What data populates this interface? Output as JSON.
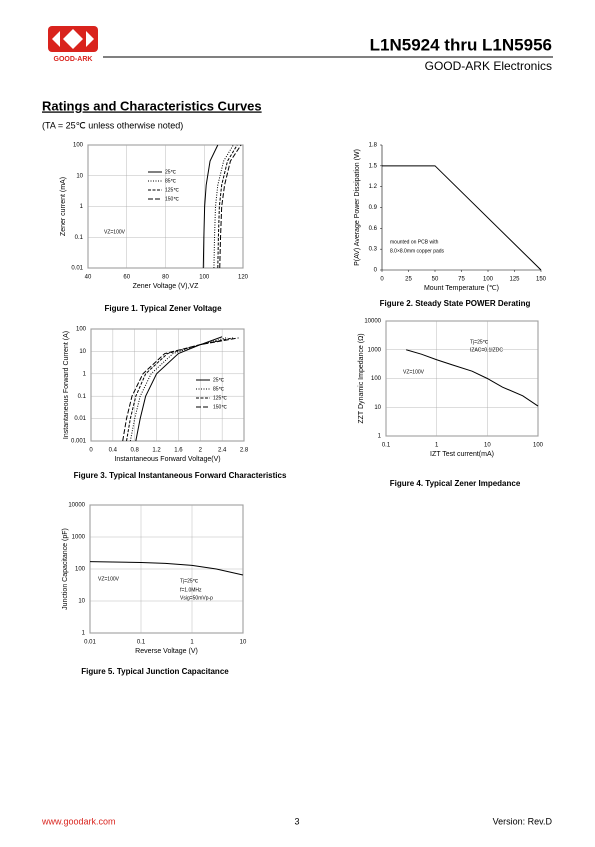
{
  "header": {
    "logo_text": "GOOD-ARK",
    "title": "L1N5924 thru L1N5956",
    "company": "GOOD-ARK Electronics"
  },
  "section": {
    "title": "Ratings and Characteristics Curves",
    "note": "(TA = 25℃ unless otherwise noted)"
  },
  "chart_data": [
    {
      "type": "line",
      "title": "Figure 1. Typical Zener Voltage",
      "x_label": "Zener Voltage (V),VZ",
      "y_label": "Zener current (mA)",
      "xlim": [
        40,
        120
      ],
      "xticks": [
        40,
        60,
        80,
        100,
        120
      ],
      "ylim": [
        0.01,
        100
      ],
      "yticks": [
        0.01,
        0.1,
        1,
        10,
        100
      ],
      "ylog": true,
      "grid": true,
      "annotations": [
        "VZ=100V"
      ],
      "series": [
        {
          "name": "25℃",
          "color": "#000000",
          "dash": "none",
          "x": [
            99.5,
            99.8,
            100.2,
            101,
            103,
            107
          ],
          "values": [
            0.01,
            0.1,
            1,
            5,
            30,
            100
          ]
        },
        {
          "name": "85℃",
          "color": "#000000",
          "dash": "1,1.5",
          "x": [
            105,
            105.3,
            105.8,
            107,
            110,
            115
          ],
          "values": [
            0.01,
            0.1,
            1,
            5,
            30,
            100
          ]
        },
        {
          "name": "125℃",
          "color": "#000000",
          "dash": "3,1.5",
          "x": [
            107,
            107.3,
            107.8,
            109,
            112,
            117
          ],
          "values": [
            0.01,
            0.1,
            1,
            5,
            30,
            100
          ]
        },
        {
          "name": "150℃",
          "color": "#000000",
          "dash": "5,2",
          "x": [
            108,
            108.4,
            109,
            110.5,
            113.5,
            119
          ],
          "values": [
            0.01,
            0.1,
            1,
            5,
            30,
            100
          ]
        }
      ]
    },
    {
      "type": "line",
      "title": "Figure 2. Steady State POWER Derating",
      "x_label": "Mount Temperature (℃)",
      "y_label": "P(AV) Average Power Dissipation (W)",
      "xlim": [
        0,
        150
      ],
      "xticks": [
        0,
        25,
        50,
        75,
        100,
        125,
        150
      ],
      "ylim": [
        0,
        1.8
      ],
      "yticks": [
        0,
        0.3,
        0.6,
        0.9,
        1.2,
        1.5,
        1.8
      ],
      "grid": false,
      "annotations": [
        "mounted on PCB with",
        "8.0×8.0mm copper pads"
      ],
      "series": [
        {
          "color": "#000000",
          "dash": "none",
          "x": [
            0,
            50,
            150
          ],
          "values": [
            1.5,
            1.5,
            0
          ]
        }
      ]
    },
    {
      "type": "line",
      "title": "Figure 3. Typical Instantaneous Forward Characteristics",
      "x_label": "Instantaneous Forward Voltage(V)",
      "y_label": "Instantaneous Forward Current (A)",
      "xlim": [
        0,
        2.8
      ],
      "xticks": [
        0,
        0.4,
        0.8,
        1.2,
        1.6,
        2,
        2.4,
        2.8
      ],
      "ylim": [
        0.001,
        100
      ],
      "yticks": [
        0.001,
        0.01,
        0.1,
        1,
        10,
        100
      ],
      "ylog": true,
      "grid": true,
      "annotations": [],
      "series": [
        {
          "name": "25℃",
          "color": "#000000",
          "dash": "none",
          "x": [
            0.82,
            0.9,
            1.0,
            1.2,
            1.6,
            2.0,
            2.4
          ],
          "values": [
            0.001,
            0.01,
            0.1,
            1,
            8,
            20,
            45
          ]
        },
        {
          "name": "85℃",
          "color": "#000000",
          "dash": "1,1.5",
          "x": [
            0.72,
            0.8,
            0.9,
            1.1,
            1.5,
            2.0,
            2.5
          ],
          "values": [
            0.001,
            0.01,
            0.1,
            1,
            8,
            20,
            42
          ]
        },
        {
          "name": "125℃",
          "color": "#000000",
          "dash": "3,1.5",
          "x": [
            0.65,
            0.72,
            0.82,
            1.0,
            1.4,
            2.0,
            2.6
          ],
          "values": [
            0.001,
            0.01,
            0.1,
            1,
            8,
            20,
            40
          ]
        },
        {
          "name": "150℃",
          "color": "#000000",
          "dash": "5,2",
          "x": [
            0.58,
            0.65,
            0.75,
            0.95,
            1.35,
            2.0,
            2.7
          ],
          "values": [
            0.001,
            0.01,
            0.1,
            1,
            8,
            20,
            40
          ]
        }
      ]
    },
    {
      "type": "line",
      "title": "Figure 4. Typical Zener Impedance",
      "x_label": "IZT Test current(mA)",
      "y_label": "ZZT Dynamic Impedance (Ω)",
      "xlim": [
        0.1,
        100
      ],
      "xticks": [
        0.1,
        1,
        10,
        100
      ],
      "xlog": true,
      "ylim": [
        1,
        10000
      ],
      "yticks": [
        1,
        10,
        100,
        1000,
        10000
      ],
      "ylog": true,
      "grid": true,
      "annotations": [
        "Tj=25℃",
        "IZAC=0.1IZDC",
        "VZ=100V"
      ],
      "series": [
        {
          "color": "#000000",
          "dash": "none",
          "x": [
            0.25,
            0.5,
            1,
            2,
            5,
            10,
            20,
            50,
            100
          ],
          "values": [
            1000,
            700,
            450,
            300,
            180,
            100,
            50,
            25,
            11
          ]
        }
      ]
    },
    {
      "type": "line",
      "title": "Figure 5. Typical Junction Capacitance",
      "x_label": "Reverse Voltage (V)",
      "y_label": "Junction Capacitance (pF)",
      "xlim": [
        0.01,
        10
      ],
      "xticks": [
        0.01,
        0.1,
        1,
        10
      ],
      "xlog": true,
      "ylim": [
        1,
        10000
      ],
      "yticks": [
        1,
        10,
        100,
        1000,
        10000
      ],
      "ylog": true,
      "grid": true,
      "annotations": [
        "VZ=100V",
        "Tj=25℃",
        "f=1.0MHz",
        "Vsig=50mVp-p"
      ],
      "series": [
        {
          "color": "#000000",
          "dash": "none",
          "x": [
            0.01,
            0.1,
            0.3,
            1,
            3,
            10
          ],
          "values": [
            170,
            160,
            150,
            130,
            100,
            65
          ]
        }
      ]
    }
  ],
  "footer": {
    "website": "www.goodark.com",
    "page": "3",
    "version": "Version: Rev.D"
  }
}
